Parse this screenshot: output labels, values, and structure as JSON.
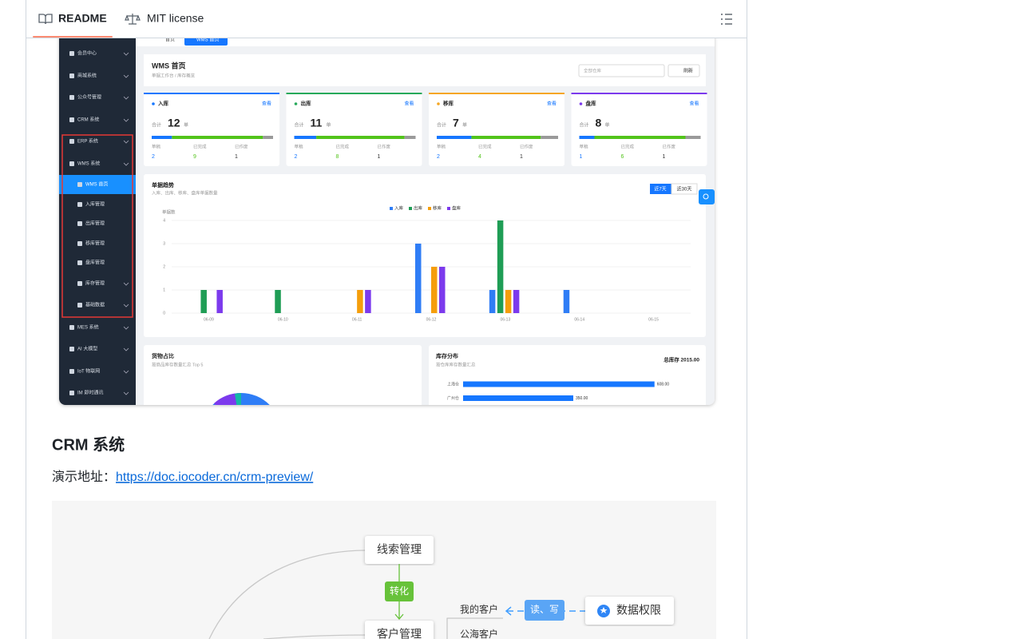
{
  "tabs": {
    "readme": "README",
    "license": "MIT license"
  },
  "wms": {
    "nav_tabs": [
      "首页",
      "WMS 首页"
    ],
    "menu": [
      "会员中心",
      "商城系统",
      "公众号管理",
      "CRM 系统",
      "ERP 系统",
      "WMS 系统",
      "WMS 首页",
      "入库管理",
      "出库管理",
      "移库管理",
      "盘库管理",
      "库存管理",
      "基础数据",
      "MES 系统",
      "AI 大模型",
      "IoT 物联网",
      "IM 即时通讯"
    ],
    "title": "WMS 首页",
    "breadcrumb": "单据工作台 / 库存概览",
    "warehouse_select": "全部仓库",
    "refresh": "刷新",
    "bar_colors": [
      "#1677ff",
      "#52c41a",
      "#9a9a9a"
    ],
    "cards": [
      {
        "name": "入库",
        "color": "#1677ff",
        "action": "查看",
        "total_label": "合计",
        "total": 12,
        "unit": "单",
        "stats": [
          {
            "label": "草稿",
            "value": 2
          },
          {
            "label": "已完成",
            "value": 9
          },
          {
            "label": "已作废",
            "value": 1
          }
        ]
      },
      {
        "name": "出库",
        "color": "#27a95a",
        "action": "查看",
        "total_label": "合计",
        "total": 11,
        "unit": "单",
        "stats": [
          {
            "label": "草稿",
            "value": 2
          },
          {
            "label": "已完成",
            "value": 8
          },
          {
            "label": "已作废",
            "value": 1
          }
        ]
      },
      {
        "name": "移库",
        "color": "#f5a623",
        "action": "查看",
        "total_label": "合计",
        "total": 7,
        "unit": "单",
        "stats": [
          {
            "label": "草稿",
            "value": 2
          },
          {
            "label": "已完成",
            "value": 4
          },
          {
            "label": "已作废",
            "value": 1
          }
        ]
      },
      {
        "name": "盘库",
        "color": "#7c3aed",
        "action": "查看",
        "total_label": "合计",
        "total": 8,
        "unit": "单",
        "stats": [
          {
            "label": "草稿",
            "value": 1
          },
          {
            "label": "已完成",
            "value": 6
          },
          {
            "label": "已作废",
            "value": 1
          }
        ]
      }
    ],
    "pie_panel": {
      "title": "货物占比",
      "subtitle": "按商品库存数量汇总 Top 5"
    }
  },
  "chart_data": [
    {
      "type": "bar",
      "title": "单据趋势",
      "subtitle": "入库、出库、移库、盘库单据数量",
      "range_buttons": [
        "近7天",
        "近30天"
      ],
      "y_label": "单据数",
      "categories": [
        "06-09",
        "06-10",
        "06-11",
        "06-12",
        "06-13",
        "06-14",
        "06-15"
      ],
      "series": [
        {
          "name": "入库",
          "color": "#2f7df6",
          "values": [
            0,
            0,
            0,
            3,
            1,
            1,
            0
          ]
        },
        {
          "name": "出库",
          "color": "#1f9d55",
          "values": [
            1,
            1,
            0,
            0,
            4,
            0,
            0
          ]
        },
        {
          "name": "移库",
          "color": "#f59e0b",
          "values": [
            0,
            0,
            1,
            2,
            1,
            0,
            0
          ]
        },
        {
          "name": "盘库",
          "color": "#7c3aed",
          "values": [
            1,
            0,
            1,
            2,
            1,
            0,
            0
          ]
        }
      ],
      "ylim": [
        0,
        4
      ],
      "yticks": [
        0,
        1,
        2,
        3,
        4
      ],
      "grid": true
    },
    {
      "type": "hbar",
      "title": "库存分布",
      "subtitle": "按仓库库存数量汇总",
      "total": "总库存 2015.00",
      "categories": [
        "上海仓",
        "广州仓"
      ],
      "values": [
        608,
        350
      ],
      "value_labels": [
        "608.00",
        "350.00"
      ],
      "color": "#1677ff",
      "xlim": [
        0,
        700
      ]
    }
  ],
  "section": {
    "heading": "CRM 系统",
    "demo_label": "演示地址：",
    "link": "https://doc.iocoder.cn/crm-preview/"
  },
  "diagram": {
    "clue": "线索管理",
    "convert": "转化",
    "customer": "客户管理",
    "mine": "我的客户",
    "pool": "公海客户",
    "rw": "读、写",
    "permission": "数据权限"
  }
}
